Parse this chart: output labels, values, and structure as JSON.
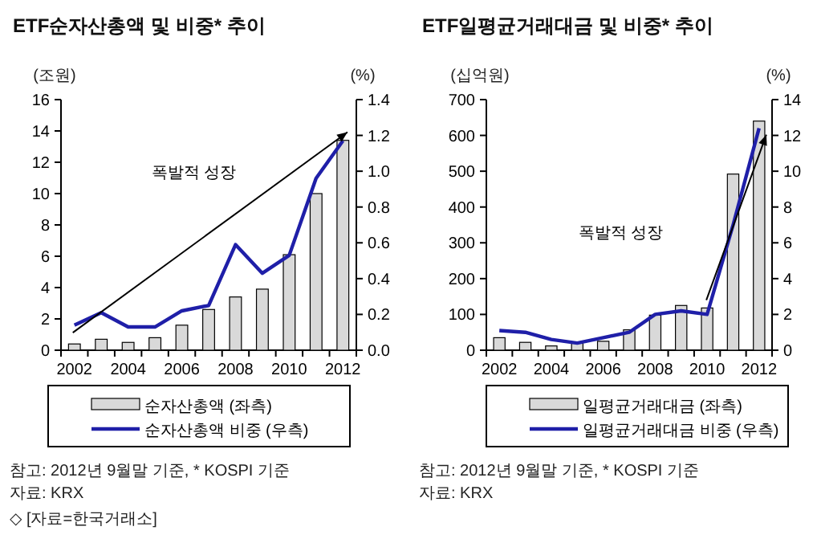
{
  "chart_data": [
    {
      "type": "bar",
      "title": "ETF순자산총액 및 비중* 추이",
      "ylabel": "(조원)",
      "y2label": "(%)",
      "categories": [
        "2002",
        null,
        "2004",
        null,
        "2006",
        null,
        "2008",
        null,
        "2010",
        null,
        "2012"
      ],
      "series": [
        {
          "name": "순자산총액 (좌측)",
          "color": "#d9d9d9",
          "values": [
            0.4,
            0.7,
            0.5,
            0.8,
            1.6,
            2.6,
            3.4,
            3.9,
            6.1,
            10.0,
            13.4
          ]
        },
        {
          "name": "순자산총액 비중 (우측)",
          "type": "line",
          "axis": "y2",
          "color": "#1f1fa8",
          "values": [
            0.14,
            0.21,
            0.13,
            0.13,
            0.22,
            0.25,
            0.59,
            0.43,
            0.53,
            0.96,
            1.17
          ]
        }
      ],
      "ylim": [
        0,
        16
      ],
      "yticks": [
        0,
        2,
        4,
        6,
        8,
        10,
        12,
        14,
        16
      ],
      "y2lim": [
        0,
        1.4
      ],
      "y2ticks": [
        {
          "value": 0,
          "label": "0.0"
        },
        {
          "value": 0.2,
          "label": "0.2"
        },
        {
          "value": 0.4,
          "label": "0.4"
        },
        {
          "value": 0.6,
          "label": "0.6"
        },
        {
          "value": 0.8,
          "label": "0.8"
        },
        {
          "value": 1.0,
          "label": "1.0"
        },
        {
          "value": 1.2,
          "label": "1.2"
        },
        {
          "value": 1.4,
          "label": "1.4"
        }
      ],
      "legend": "bottom",
      "grid": false,
      "annotations": [
        "폭발적 성장",
        "참고: 2012년 9월말 기준, * KOSPI 기준",
        "자료: KRX",
        "◇ [자료=한국거래소]"
      ]
    },
    {
      "type": "bar",
      "title": "ETF일평균거래대금 및 비중* 추이",
      "ylabel": "(십억원)",
      "y2label": "(%)",
      "categories": [
        "2002",
        null,
        "2004",
        null,
        "2006",
        null,
        "2008",
        null,
        "2010",
        null,
        "2012"
      ],
      "series": [
        {
          "name": "일평균거래대금 (좌측)",
          "color": "#d9d9d9",
          "values": [
            35,
            22,
            12,
            20,
            25,
            57,
            98,
            125,
            118,
            492,
            640
          ]
        },
        {
          "name": "일평균거래대금 비중 (우측)",
          "type": "line",
          "axis": "y2",
          "color": "#1f1fa8",
          "values": [
            1.1,
            1.0,
            0.6,
            0.4,
            0.7,
            1.0,
            2.0,
            2.2,
            2.0,
            7.0,
            12.4
          ]
        }
      ],
      "ylim": [
        0,
        700
      ],
      "yticks": [
        0,
        100,
        200,
        300,
        400,
        500,
        600,
        700
      ],
      "y2lim": [
        0,
        14
      ],
      "y2ticks": [
        0,
        2,
        4,
        6,
        8,
        10,
        12,
        14
      ],
      "legend": "bottom",
      "grid": false,
      "annotations": [
        "폭발적 성장",
        "참고: 2012년 9월말 기준, * KOSPI 기준",
        "자료: KRX"
      ]
    }
  ]
}
